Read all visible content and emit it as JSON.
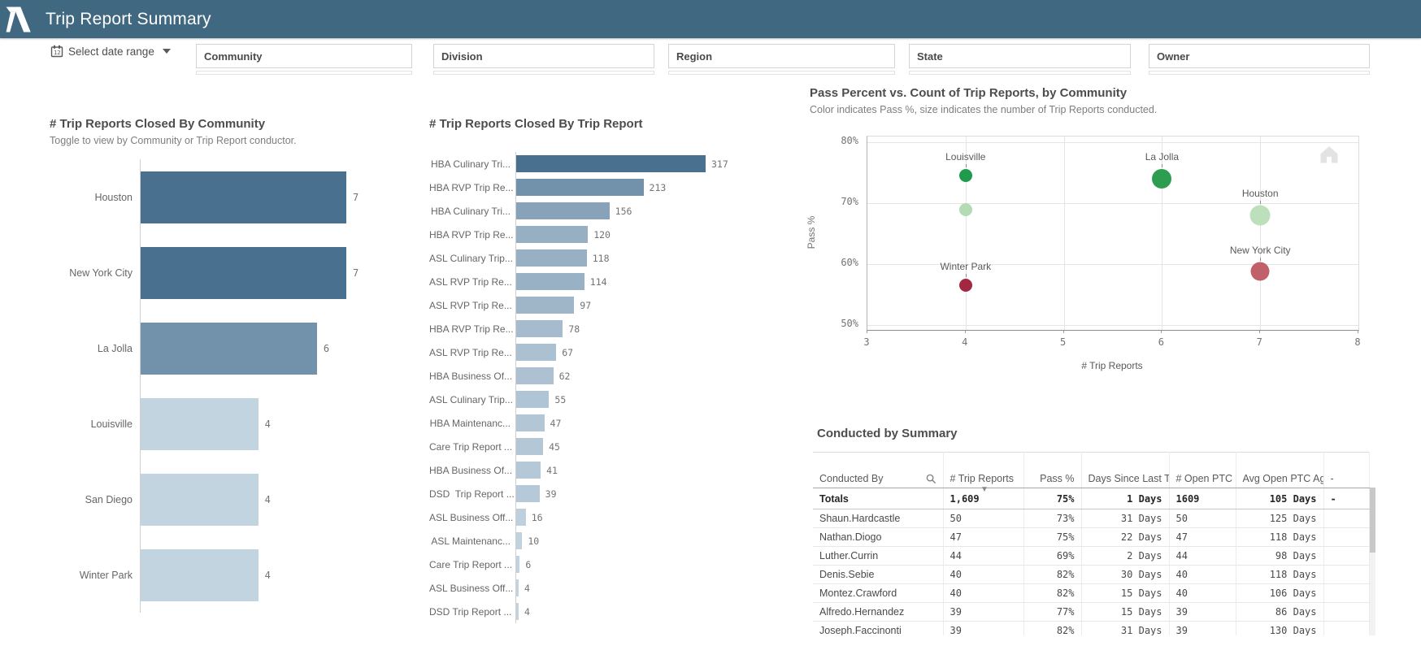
{
  "header": {
    "title": "Trip Report Summary",
    "bg_color": "#406880"
  },
  "filters": {
    "date_range_label": "Select date range",
    "boxes": [
      {
        "label": "Community"
      },
      {
        "label": "Division"
      },
      {
        "label": "Region"
      },
      {
        "label": "State"
      },
      {
        "label": "Owner"
      }
    ]
  },
  "chart_data": [
    {
      "id": "community_bar",
      "type": "bar",
      "orientation": "horizontal",
      "title": "# Trip Reports Closed By Community",
      "subtitle": "Toggle to view by Community or Trip Report conductor.",
      "categories": [
        "Houston",
        "New York City",
        "La Jolla",
        "Louisville",
        "San Diego",
        "Winter Park"
      ],
      "values": [
        7,
        7,
        6,
        4,
        4,
        4
      ],
      "xlim": [
        0,
        7
      ],
      "color_scale": {
        "min_color": "#c3d4e1",
        "max_color": "#4a708f"
      },
      "grid": false,
      "legend": "none"
    },
    {
      "id": "trip_report_bar",
      "type": "bar",
      "orientation": "horizontal",
      "title": "# Trip Reports Closed By Trip Report",
      "categories": [
        "HBA Culinary Tri...",
        "HBA RVP Trip Re...",
        "HBA Culinary Tri...",
        "HBA RVP Trip Re...",
        "ASL Culinary Trip...",
        "ASL RVP Trip Re...",
        "ASL RVP Trip Re...",
        "HBA RVP Trip Re...",
        "ASL RVP Trip Re...",
        "HBA Business Of...",
        "ASL Culinary Trip...",
        "HBA Maintenanc...",
        "Care Trip Report ...",
        "HBA Business Of...",
        "DSD  Trip Report ...",
        "ASL Business Off...",
        "ASL Maintenanc...",
        "Care Trip Report ...",
        "ASL Business Off...",
        "DSD Trip Report ..."
      ],
      "values": [
        317,
        213,
        156,
        120,
        118,
        114,
        97,
        78,
        67,
        62,
        55,
        47,
        45,
        41,
        39,
        16,
        10,
        6,
        4,
        4
      ],
      "xlim": [
        0,
        317
      ],
      "color_scale": {
        "min_color": "#c3d4e1",
        "max_color": "#4a708f"
      },
      "grid": false,
      "legend": "none"
    },
    {
      "id": "scatter",
      "type": "scatter",
      "title": "Pass Percent vs. Count of Trip Reports, by Community",
      "subtitle": "Color indicates Pass %, size indicates the number of Trip Reports conducted.",
      "xlabel": "# Trip Reports",
      "ylabel": "Pass %",
      "xlim": [
        3,
        8
      ],
      "ylim": [
        50,
        81
      ],
      "x_ticks": [
        3,
        4,
        5,
        6,
        7,
        8
      ],
      "y_ticks": [
        80,
        70,
        60,
        50
      ],
      "y_tick_suffix": "%",
      "grid": true,
      "points": [
        {
          "label": "Louisville",
          "x": 4,
          "y": 74.5,
          "r": 8,
          "color": "#1f9b4d"
        },
        {
          "label": "",
          "x": 4,
          "y": 69,
          "r": 8,
          "color": "#b2dbb6"
        },
        {
          "label": "La Jolla",
          "x": 6,
          "y": 74,
          "r": 12,
          "color": "#2d9e51"
        },
        {
          "label": "Houston",
          "x": 7,
          "y": 68,
          "r": 12.5,
          "color": "#bcdfbc"
        },
        {
          "label": "New York City",
          "x": 7,
          "y": 58.8,
          "r": 11.5,
          "color": "#c1606a"
        },
        {
          "label": "Winter Park",
          "x": 4,
          "y": 56.6,
          "r": 8,
          "color": "#a32740"
        }
      ]
    },
    {
      "id": "conducted_table",
      "type": "table",
      "title": "Conducted by Summary",
      "columns": [
        {
          "label": "Conducted By",
          "align": "left",
          "icon": "search-icon"
        },
        {
          "label": "# Trip Reports",
          "align": "left"
        },
        {
          "label": "Pass %",
          "align": "right"
        },
        {
          "label": "Days Since Last Trip",
          "align": "right"
        },
        {
          "label": "# Open PTC",
          "align": "left"
        },
        {
          "label": "Avg Open PTC Age",
          "align": "right"
        },
        {
          "label": "-",
          "align": "left"
        }
      ],
      "totals": [
        "Totals",
        "1,609",
        "75%",
        "1 Days",
        "1609",
        "105 Days",
        "-"
      ],
      "rows": [
        [
          "Shaun.Hardcastle",
          "50",
          "73%",
          "31 Days",
          "50",
          "125 Days",
          ""
        ],
        [
          "Nathan.Diogo",
          "47",
          "75%",
          "22 Days",
          "47",
          "118 Days",
          ""
        ],
        [
          "Luther.Currin",
          "44",
          "69%",
          "2 Days",
          "44",
          "98 Days",
          ""
        ],
        [
          "Denis.Sebie",
          "40",
          "82%",
          "30 Days",
          "40",
          "118 Days",
          ""
        ],
        [
          "Montez.Crawford",
          "40",
          "82%",
          "15 Days",
          "40",
          "106 Days",
          ""
        ],
        [
          "Alfredo.Hernandez",
          "39",
          "77%",
          "15 Days",
          "39",
          "86 Days",
          ""
        ],
        [
          "Joseph.Faccinonti",
          "39",
          "82%",
          "31 Days",
          "39",
          "130 Days",
          ""
        ]
      ]
    }
  ]
}
